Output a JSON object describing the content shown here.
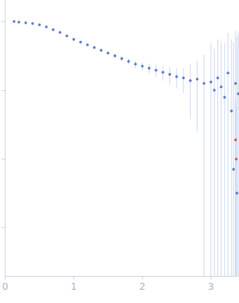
{
  "chart_data": {
    "type": "scatter",
    "log": "y",
    "grid": false,
    "tick_labels": "x",
    "xlim": [
      0,
      3.4
    ],
    "xticks": [
      0,
      1,
      2,
      3
    ],
    "ylim": [
      0.0002,
      2
    ],
    "yticks": [
      0.001,
      0.01,
      0.1,
      1
    ],
    "series": [
      {
        "color": "#3a64c0",
        "marker": "circle",
        "x": [
          0.13,
          0.2,
          0.3,
          0.4,
          0.5,
          0.6,
          0.7,
          0.8,
          0.9,
          1.0,
          1.1,
          1.2,
          1.3,
          1.4,
          1.5,
          1.6,
          1.7,
          1.8,
          1.9,
          2.0,
          2.1,
          2.2,
          2.3,
          2.4,
          2.5,
          2.6,
          2.7,
          2.8,
          2.9,
          3.0,
          3.05,
          3.1,
          3.15,
          3.2,
          3.25,
          3.3,
          3.33,
          3.36,
          3.38,
          3.4
        ],
        "values": [
          1.0,
          0.977,
          0.955,
          0.933,
          0.891,
          0.832,
          0.759,
          0.692,
          0.617,
          0.55,
          0.501,
          0.457,
          0.417,
          0.38,
          0.347,
          0.316,
          0.288,
          0.263,
          0.24,
          0.224,
          0.209,
          0.195,
          0.182,
          0.17,
          0.158,
          0.151,
          0.138,
          0.145,
          0.126,
          0.132,
          0.1,
          0.151,
          0.112,
          0.079,
          0.178,
          0.05,
          0.0071,
          0.126,
          0.0032,
          0.089
        ],
        "errors": [
          0.02,
          0.015,
          0.015,
          0.015,
          0.015,
          0.015,
          0.015,
          0.015,
          0.015,
          0.02,
          0.02,
          0.02,
          0.02,
          0.02,
          0.02,
          0.025,
          0.025,
          0.025,
          0.03,
          0.03,
          0.035,
          0.04,
          0.045,
          0.05,
          0.05,
          0.06,
          0.1,
          0.12,
          0.2,
          0.35,
          0.3,
          0.4,
          0.4,
          0.4,
          0.5,
          0.5,
          0.5,
          0.6,
          0.6,
          0.6
        ]
      },
      {
        "color": "#e0322e",
        "marker": "circle",
        "x": [
          3.36,
          3.37
        ],
        "values": [
          0.019,
          0.01
        ],
        "errors": [
          0.05,
          0.05
        ]
      }
    ]
  }
}
